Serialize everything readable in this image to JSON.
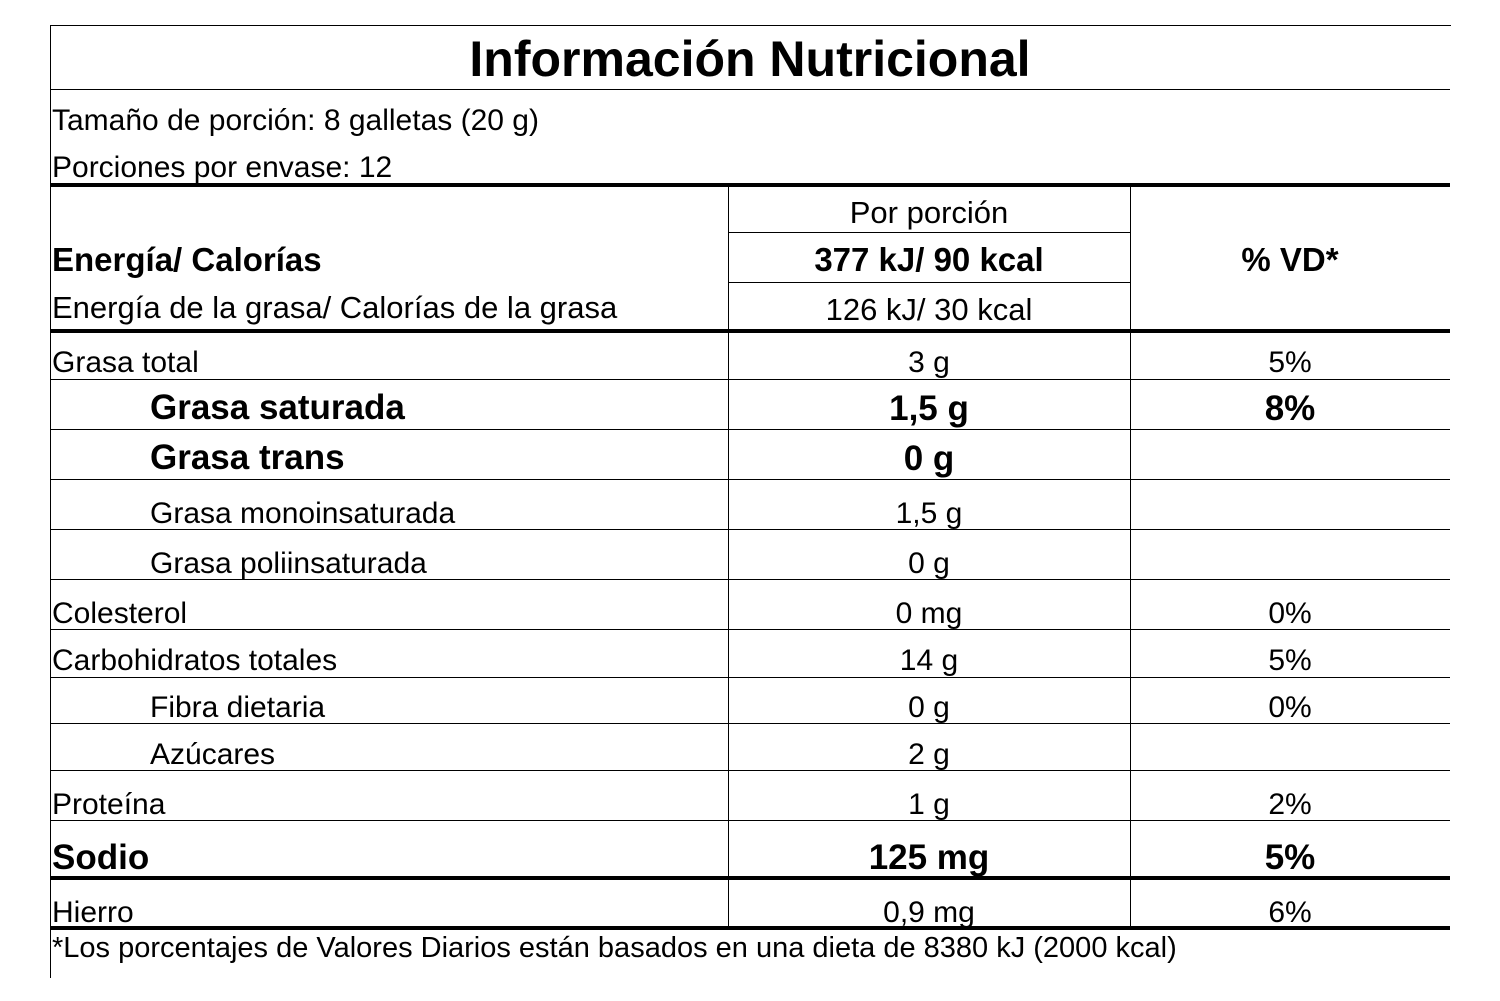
{
  "label": {
    "title": "Información Nutricional",
    "serving_size": "Tamaño de porción: 8 galletas (20 g)",
    "servings_per_container": "Porciones por envase: 12",
    "per_serving_header": "Por porción",
    "dv_header": "% VD*",
    "energy_label": "Energía/ Calorías",
    "energy_value": "377 kJ/ 90 kcal",
    "fat_energy_label": "Energía de la grasa/ Calorías de la grasa",
    "fat_energy_value": "126 kJ/ 30 kcal",
    "rows": [
      {
        "name": "Grasa total",
        "amount": "3 g",
        "dv": "5%"
      },
      {
        "name": "Grasa saturada",
        "amount": "1,5 g",
        "dv": "8%"
      },
      {
        "name": "Grasa trans",
        "amount": "0 g",
        "dv": ""
      },
      {
        "name": "Grasa monoinsaturada",
        "amount": "1,5 g",
        "dv": ""
      },
      {
        "name": "Grasa poliinsaturada",
        "amount": "0 g",
        "dv": ""
      },
      {
        "name": "Colesterol",
        "amount": "0 mg",
        "dv": "0%"
      },
      {
        "name": "Carbohidratos totales",
        "amount": "14 g",
        "dv": "5%"
      },
      {
        "name": "Fibra dietaria",
        "amount": "0 g",
        "dv": "0%"
      },
      {
        "name": "Azúcares",
        "amount": "2 g",
        "dv": ""
      },
      {
        "name": "Proteína",
        "amount": "1 g",
        "dv": "2%"
      },
      {
        "name": "Sodio",
        "amount": "125 mg",
        "dv": "5%"
      },
      {
        "name": "Hierro",
        "amount": "0,9 mg",
        "dv": "6%"
      }
    ],
    "footnote": "*Los porcentajes de Valores Diarios están basados en una dieta de 8380 kJ (2000 kcal)"
  }
}
